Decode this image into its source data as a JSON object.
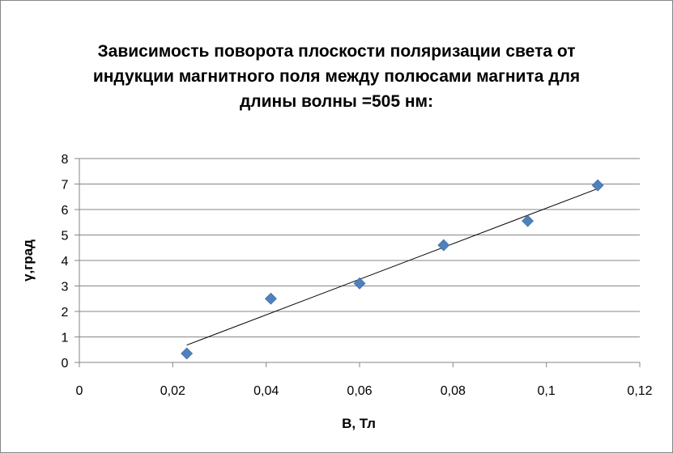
{
  "chart_data": {
    "type": "scatter",
    "title_lines": [
      "Зависимость  поворота плоскости поляризации света от",
      "индукции магнитного поля между полюсами магнита для",
      "длины волны =505 нм:"
    ],
    "xlabel": "B, Тл",
    "ylabel": "γ,град",
    "xlim": [
      0,
      0.12
    ],
    "ylim": [
      0,
      8
    ],
    "xticks": [
      "0",
      "0,02",
      "0,04",
      "0,06",
      "0,08",
      "0,1",
      "0,12"
    ],
    "yticks": [
      "0",
      "1",
      "2",
      "3",
      "4",
      "5",
      "6",
      "7",
      "8"
    ],
    "grid": "horizontal",
    "series": [
      {
        "color": "#4F81BD",
        "marker": "diamond",
        "x": [
          0.023,
          0.041,
          0.06,
          0.078,
          0.096,
          0.111
        ],
        "y": [
          0.35,
          2.5,
          3.1,
          4.6,
          5.55,
          6.95
        ]
      }
    ],
    "trendline": {
      "type": "linear",
      "color": "#000000",
      "x": [
        0.023,
        0.111
      ],
      "y": [
        0.68,
        6.82
      ]
    }
  }
}
